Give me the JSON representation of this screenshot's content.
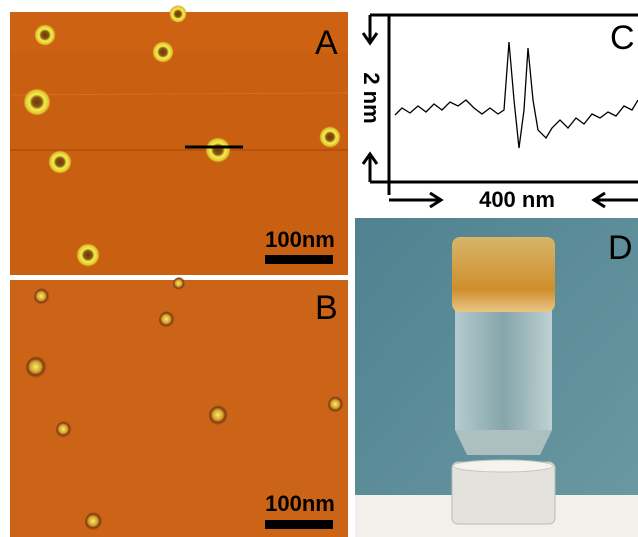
{
  "panels": [
    {
      "label": "A",
      "scale_bar": "100nm"
    },
    {
      "label": "B",
      "scale_bar": "100nm"
    },
    {
      "label": "C",
      "y_label": "2 nm",
      "x_label": "400 nm"
    },
    {
      "label": "D"
    }
  ]
}
